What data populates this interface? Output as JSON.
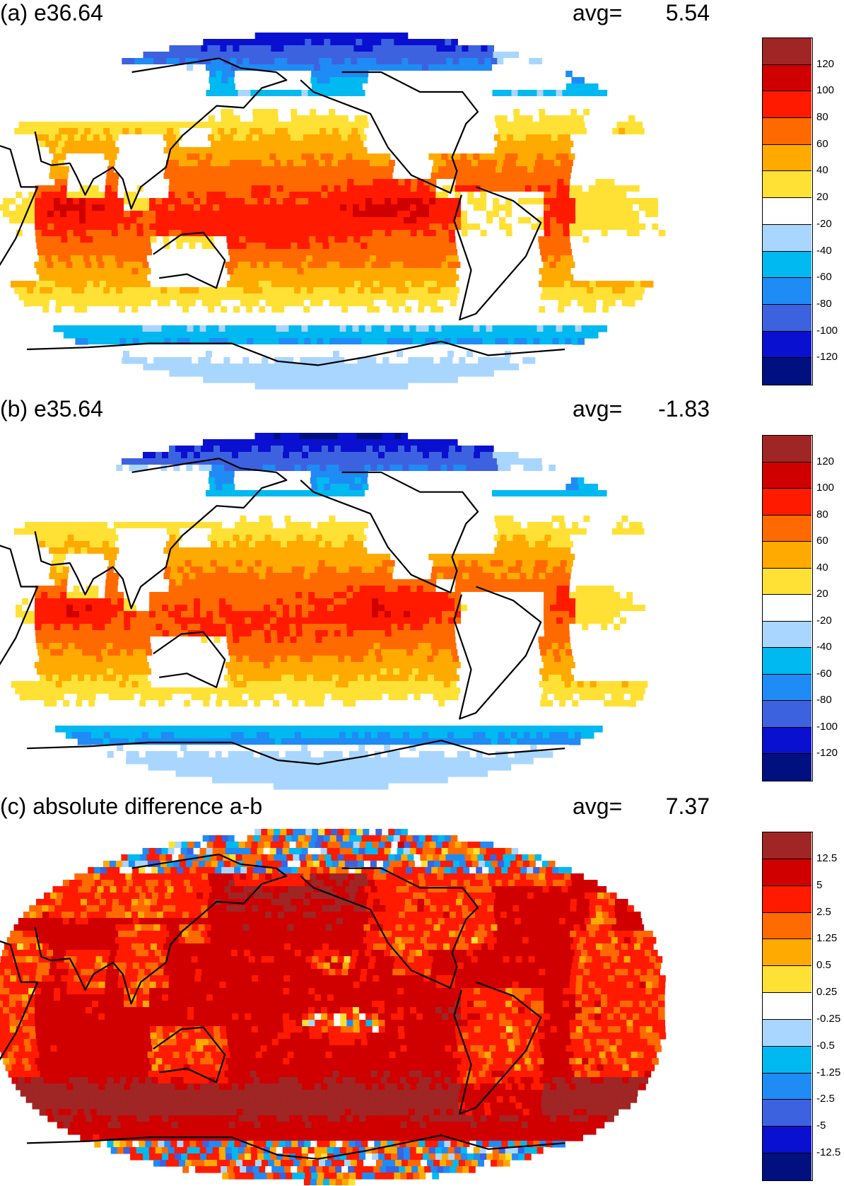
{
  "panels": [
    {
      "title": "(a) e36.64",
      "avg_label": "avg=",
      "avg_value": "5.54",
      "field": "a",
      "colors": [
        "#00107f",
        "#0a10d0",
        "#3d62e0",
        "#1f8bf5",
        "#00b9f0",
        "#a9d6ff",
        "#ffffff",
        "#ffe135",
        "#ffaa00",
        "#ff6a00",
        "#ff1a00",
        "#d00000",
        "#a02525"
      ],
      "labels": [
        "-120",
        "-100",
        "-80",
        "-60",
        "-40",
        "-20",
        "20",
        "40",
        "60",
        "80",
        "100",
        "120"
      ]
    },
    {
      "title": "(b) e35.64",
      "avg_label": "avg=",
      "avg_value": "-1.83",
      "field": "b",
      "colors": [
        "#00107f",
        "#0a10d0",
        "#3d62e0",
        "#1f8bf5",
        "#00b9f0",
        "#a9d6ff",
        "#ffffff",
        "#ffe135",
        "#ffaa00",
        "#ff6a00",
        "#ff1a00",
        "#d00000",
        "#a02525"
      ],
      "labels": [
        "-120",
        "-100",
        "-80",
        "-60",
        "-40",
        "-20",
        "20",
        "40",
        "60",
        "80",
        "100",
        "120"
      ]
    },
    {
      "title": "(c) absolute difference a-b",
      "avg_label": "avg=",
      "avg_value": "7.37",
      "field": "c",
      "colors": [
        "#00107f",
        "#0a10d0",
        "#3d62e0",
        "#1f8bf5",
        "#00b9f0",
        "#a9d6ff",
        "#ffffff",
        "#ffe135",
        "#ffaa00",
        "#ff6a00",
        "#ff1a00",
        "#d00000",
        "#a02525"
      ],
      "labels": [
        "-12.5",
        "-5",
        "-2.5",
        "-1.25",
        "-0.5",
        "-0.25",
        "0.25",
        "0.5",
        "1.25",
        "2.5",
        "5",
        "12.5"
      ]
    }
  ]
}
